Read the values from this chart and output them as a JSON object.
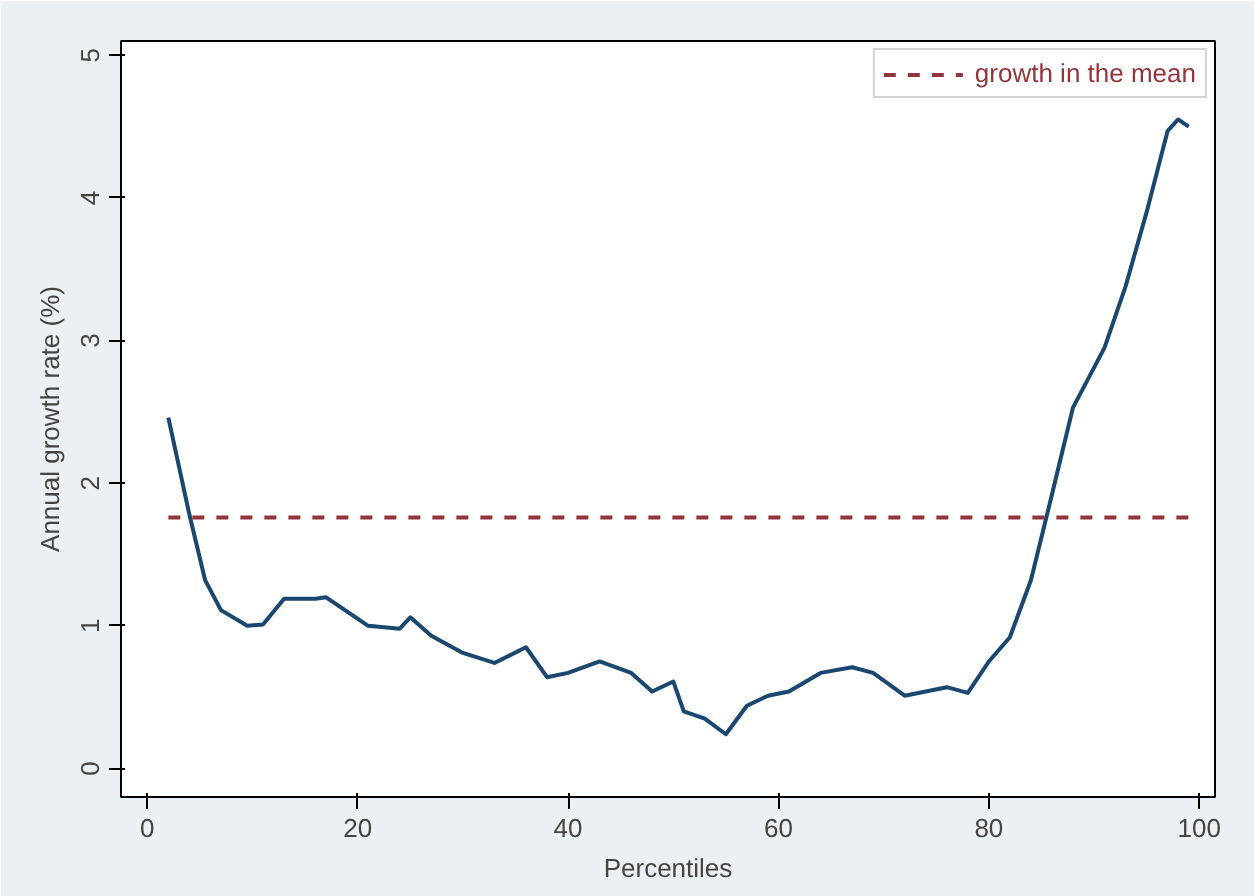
{
  "chart_data": {
    "type": "line",
    "xlabel": "Percentiles",
    "ylabel": "Annual growth rate (%)",
    "x": [
      2,
      4,
      5.5,
      7,
      9.5,
      11,
      13,
      16,
      17,
      19,
      21,
      24,
      25,
      27,
      30,
      33,
      36,
      38,
      40,
      43,
      46,
      48,
      50,
      51,
      53,
      55,
      57,
      59,
      61,
      64,
      67,
      69,
      72,
      74,
      76,
      78,
      80,
      82,
      84,
      86,
      88,
      91,
      93,
      95,
      97,
      98,
      99
    ],
    "series": [
      {
        "color": "#1a476f",
        "values": [
          2.46,
          1.78,
          1.32,
          1.11,
          1.0,
          1.01,
          1.19,
          1.19,
          1.2,
          1.1,
          1.0,
          0.98,
          1.06,
          0.93,
          0.81,
          0.74,
          0.85,
          0.64,
          0.67,
          0.75,
          0.67,
          0.54,
          0.61,
          0.4,
          0.35,
          0.24,
          0.44,
          0.51,
          0.54,
          0.67,
          0.71,
          0.67,
          0.51,
          0.54,
          0.57,
          0.53,
          0.75,
          0.92,
          1.32,
          1.92,
          2.53,
          2.95,
          3.38,
          3.9,
          4.47,
          4.55,
          4.5
        ]
      }
    ],
    "ref_lines": [
      {
        "axis": "y",
        "value": 1.76,
        "label": "growth in the mean",
        "color": "#90353b",
        "line_style": "dashed"
      }
    ],
    "xlim": [
      -2.5,
      101.5
    ],
    "ylim": [
      -0.2,
      5.1
    ],
    "xticks": [
      0,
      20,
      40,
      60,
      80,
      100
    ],
    "yticks": [
      0,
      1,
      2,
      3,
      4,
      5
    ],
    "grid": false,
    "legend": "top right",
    "marker": "none",
    "line_style": "solid"
  }
}
